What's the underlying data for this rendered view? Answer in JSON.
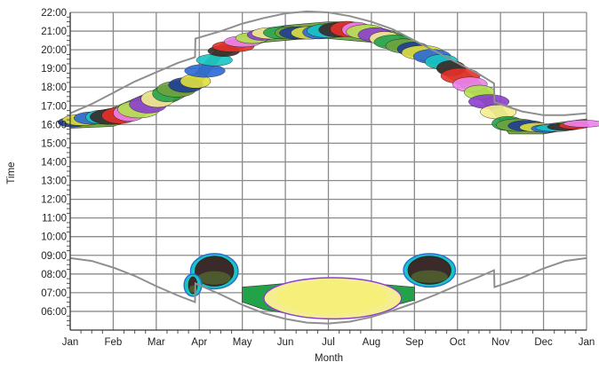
{
  "chart_data": {
    "type": "scatter",
    "title": "",
    "xlabel": "Month",
    "ylabel": "Time",
    "x_ticks": [
      "Jan",
      "Feb",
      "Mar",
      "Apr",
      "May",
      "Jun",
      "Jul",
      "Aug",
      "Sep",
      "Oct",
      "Nov",
      "Dec",
      "Jan"
    ],
    "y_ticks": [
      "06:00",
      "07:00",
      "08:00",
      "09:00",
      "10:00",
      "11:00",
      "12:00",
      "13:00",
      "14:00",
      "15:00",
      "16:00",
      "17:00",
      "18:00",
      "19:00",
      "20:00",
      "21:00",
      "22:00"
    ],
    "xlim": [
      0,
      12
    ],
    "ylim": [
      5.0,
      22.0
    ],
    "grid": true,
    "legend": "none",
    "sunset_curve": {
      "x": [
        0,
        0.5,
        1,
        1.5,
        2,
        2.5,
        2.9,
        2.91,
        3.5,
        4,
        4.5,
        5,
        5.5,
        6,
        6.5,
        7,
        7.5,
        8,
        8.5,
        9,
        9.5,
        9.85,
        9.86,
        10.5,
        11,
        11.5,
        12
      ],
      "y": [
        16.6,
        17.1,
        17.7,
        18.3,
        18.8,
        19.3,
        19.6,
        20.6,
        21.0,
        21.4,
        21.7,
        21.95,
        22.05,
        22.0,
        21.8,
        21.5,
        21.1,
        20.5,
        19.9,
        19.3,
        18.7,
        18.2,
        17.2,
        16.7,
        16.5,
        16.5,
        16.6
      ]
    },
    "sunrise_curve": {
      "x": [
        0,
        0.5,
        1,
        1.5,
        2,
        2.5,
        2.9,
        2.91,
        3.5,
        4,
        4.5,
        5,
        5.5,
        6,
        6.5,
        7,
        7.5,
        8,
        8.5,
        9,
        9.5,
        9.85,
        9.86,
        10.5,
        11,
        11.5,
        12
      ],
      "y": [
        8.85,
        8.7,
        8.35,
        7.9,
        7.35,
        6.85,
        6.5,
        7.5,
        6.9,
        6.35,
        5.9,
        5.6,
        5.4,
        5.35,
        5.45,
        5.7,
        6.05,
        6.45,
        6.9,
        7.4,
        7.85,
        8.2,
        7.3,
        7.8,
        8.3,
        8.7,
        8.85
      ]
    },
    "evening_activity": {
      "x": [
        0,
        1,
        1.5,
        2,
        2.5,
        2.9,
        3.5,
        4,
        4.5,
        5,
        5.5,
        6,
        6.5,
        7,
        7.5,
        8,
        8.5,
        9,
        9.5,
        9.85,
        10.2,
        11,
        12
      ],
      "y_low": [
        15.8,
        15.9,
        16.3,
        16.8,
        17.3,
        17.8,
        19.6,
        20.1,
        20.4,
        20.5,
        20.6,
        20.6,
        20.5,
        20.4,
        20.1,
        19.6,
        19.0,
        18.2,
        17.4,
        16.6,
        15.5,
        15.5,
        15.9
      ],
      "y_high": [
        16.4,
        16.9,
        17.4,
        17.9,
        18.3,
        18.7,
        20.3,
        20.8,
        21.1,
        21.3,
        21.4,
        21.5,
        21.5,
        21.3,
        21.0,
        20.5,
        19.9,
        19.2,
        18.3,
        17.5,
        16.4,
        16.0,
        16.3
      ]
    },
    "morning_activity": {
      "x": [
        4,
        4.5,
        5,
        5.5,
        6,
        6.5,
        7,
        7.5,
        8
      ],
      "y_low": [
        6.5,
        6.1,
        5.9,
        5.85,
        5.9,
        5.95,
        6.1,
        6.3,
        6.6
      ],
      "y_high": [
        7.3,
        7.4,
        7.5,
        7.55,
        7.55,
        7.55,
        7.5,
        7.4,
        7.3
      ]
    },
    "morning_blobs": [
      {
        "x_center": 3.35,
        "y_center": 8.15,
        "x_radius": 0.45,
        "y_radius": 0.8
      },
      {
        "x_center": 8.35,
        "y_center": 8.2,
        "x_radius": 0.5,
        "y_radius": 0.75
      },
      {
        "x_center": 2.85,
        "y_center": 7.4,
        "x_radius": 0.1,
        "y_radius": 0.45
      }
    ],
    "palette": [
      "#1f3e95",
      "#e8302a",
      "#22a34a",
      "#19c4c4",
      "#8d3fd0",
      "#e0e040",
      "#ee82ee",
      "#6fa341",
      "#3b2a2a",
      "#f4ee90",
      "#2b6ad6",
      "#b4e050"
    ]
  }
}
